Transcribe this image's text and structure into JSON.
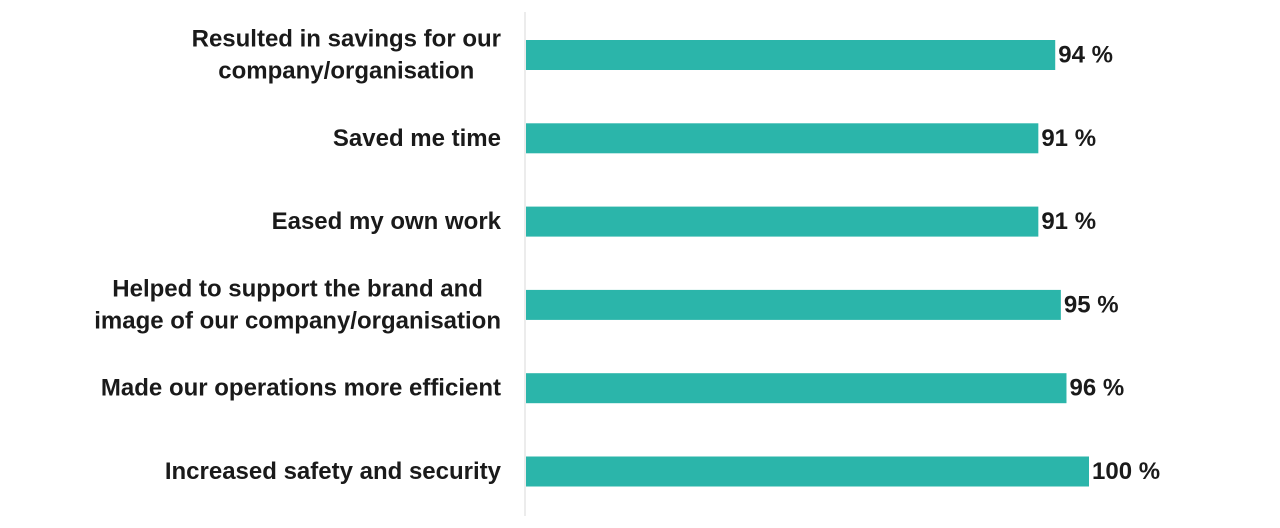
{
  "chart_data": {
    "type": "bar",
    "orientation": "horizontal",
    "categories": [
      [
        "Resulted in savings for our",
        "company/organisation"
      ],
      [
        "Saved me time"
      ],
      [
        "Eased my own work"
      ],
      [
        "Helped to support the brand and",
        "image of our company/organisation"
      ],
      [
        "Made our operations more efficient"
      ],
      [
        "Increased safety and security"
      ]
    ],
    "values": [
      94,
      91,
      91,
      95,
      96,
      100
    ],
    "value_labels": [
      "94 %",
      "91 %",
      "91 %",
      "95 %",
      "96 %",
      "100 %"
    ],
    "unit": "%",
    "xlim": [
      0,
      100
    ],
    "grid": false,
    "legend": "none",
    "colors": {
      "bar": "#2bb5aa",
      "axis": "#d9d9d9",
      "text": "#1a1a1a"
    }
  }
}
